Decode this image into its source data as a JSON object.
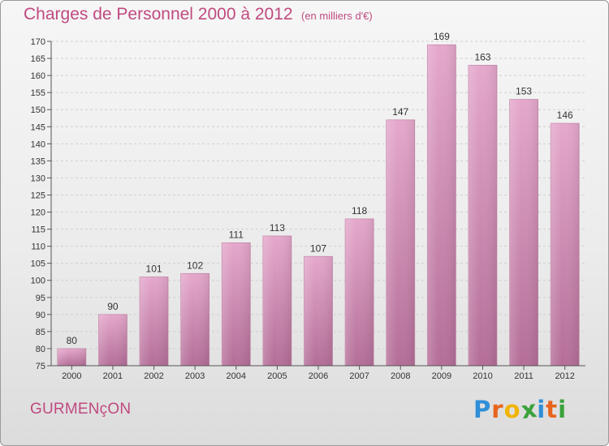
{
  "header": {
    "title": "Charges de Personnel 2000 à 2012",
    "subtitle": "(en milliers d'€)"
  },
  "footer": {
    "commune": "GURMENçON",
    "logo_letters": [
      "P",
      "r",
      "o",
      "x",
      "i",
      "t",
      "i"
    ],
    "logo_colors": [
      "#2f8fd8",
      "#e8641e",
      "#f0b400",
      "#3aa23a",
      "#2f8fd8",
      "#e8641e",
      "#3aa23a"
    ]
  },
  "chart_data": {
    "type": "bar",
    "title": "Charges de Personnel 2000 à 2012",
    "subtitle": "(en milliers d'€)",
    "categories": [
      "2000",
      "2001",
      "2002",
      "2003",
      "2004",
      "2005",
      "2006",
      "2007",
      "2008",
      "2009",
      "2010",
      "2011",
      "2012"
    ],
    "values": [
      80,
      90,
      101,
      102,
      111,
      113,
      107,
      118,
      147,
      169,
      163,
      153,
      146
    ],
    "ylim": [
      75,
      170
    ],
    "yticks": [
      75,
      80,
      85,
      90,
      95,
      100,
      105,
      110,
      115,
      120,
      125,
      130,
      135,
      140,
      145,
      150,
      155,
      160,
      165,
      170
    ],
    "grid": true,
    "legend": "none",
    "bar_color": "#d98bb8"
  }
}
